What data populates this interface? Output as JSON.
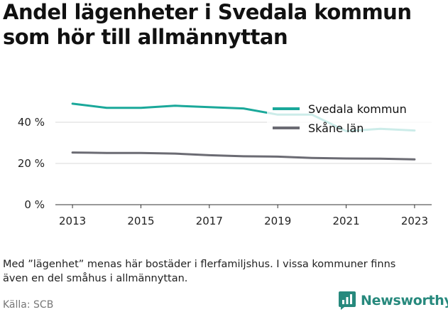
{
  "title_lines": [
    "Andel lägenheter i Svedala kommun",
    "som hör till allmännyttan"
  ],
  "note_lines": [
    "Med ”lägenhet” menas här bostäder i flerfamiljshus. I vissa kommuner finns",
    "även en del småhus i allmännyttan."
  ],
  "source": "Källa: SCB",
  "logo": {
    "text": "Newsworthy",
    "icon": "bar-chart-logo-icon"
  },
  "colors": {
    "svedala": "#1aa89a",
    "skane": "#6b6b73",
    "grid": "#d9d9d9",
    "logo": "#27897d"
  },
  "chart_data": {
    "type": "line",
    "title": "Andel lägenheter i Svedala kommun som hör till allmännyttan",
    "xlabel": "",
    "ylabel": "",
    "x": [
      2013,
      2014,
      2015,
      2016,
      2017,
      2018,
      2019,
      2020,
      2021,
      2022,
      2023
    ],
    "x_ticks": [
      "2013",
      "2015",
      "2017",
      "2019",
      "2021",
      "2023"
    ],
    "y_ticks": [
      "0 %",
      "20 %",
      "40 %"
    ],
    "ylim": [
      0,
      50
    ],
    "grid": true,
    "legend_position": "top-right",
    "series": [
      {
        "name": "Svedala kommun",
        "color": "#1aa89a",
        "values": [
          49,
          47,
          47,
          48,
          47.3,
          46.7,
          43.7,
          43.7,
          35.7,
          36.8,
          36
        ]
      },
      {
        "name": "Skåne län",
        "color": "#6b6b73",
        "values": [
          25.3,
          25.1,
          25.1,
          24.8,
          24,
          23.5,
          23.3,
          22.7,
          22.4,
          22.3,
          22
        ]
      }
    ]
  }
}
